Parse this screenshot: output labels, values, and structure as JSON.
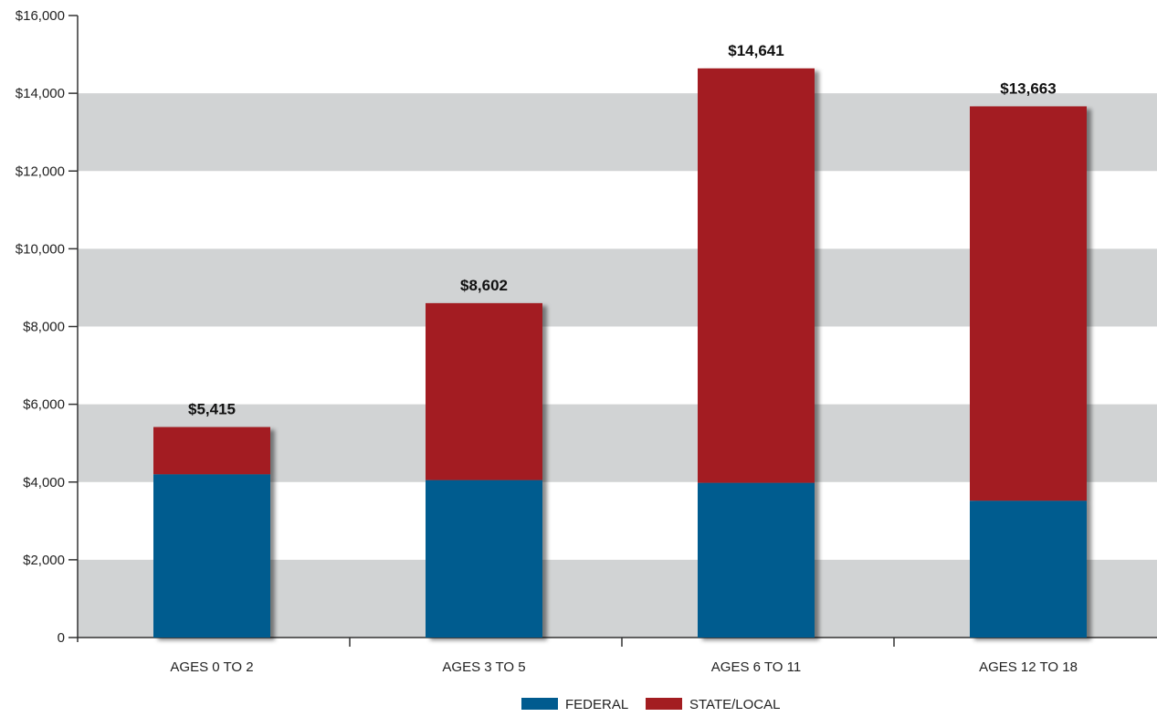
{
  "chart_data": {
    "type": "bar",
    "stacked": true,
    "categories": [
      "AGES 0 TO 2",
      "AGES 3 TO 5",
      "AGES 6 TO 11",
      "AGES 12 TO 18"
    ],
    "series": [
      {
        "name": "FEDERAL",
        "values": [
          4200,
          4050,
          3980,
          3520
        ],
        "color": "#005b8f"
      },
      {
        "name": "STATE/LOCAL",
        "values": [
          1215,
          4552,
          10661,
          10143
        ],
        "color": "#a31d21"
      }
    ],
    "totals": [
      5415,
      8602,
      14641,
      13663
    ],
    "total_labels": [
      "$5,415",
      "$8,602",
      "$14,641",
      "$13,663"
    ],
    "y_ticks": [
      0,
      2000,
      4000,
      6000,
      8000,
      10000,
      12000,
      14000,
      16000
    ],
    "y_tick_labels": [
      "0",
      "$2,000",
      "$4,000",
      "$6,000",
      "$8,000",
      "$10,000",
      "$12,000",
      "$14,000",
      "$16,000"
    ],
    "ylim": [
      0,
      16000
    ],
    "grid": "alternating horizontal bands",
    "band_color": "#d1d3d4",
    "legend_position": "bottom-center"
  }
}
